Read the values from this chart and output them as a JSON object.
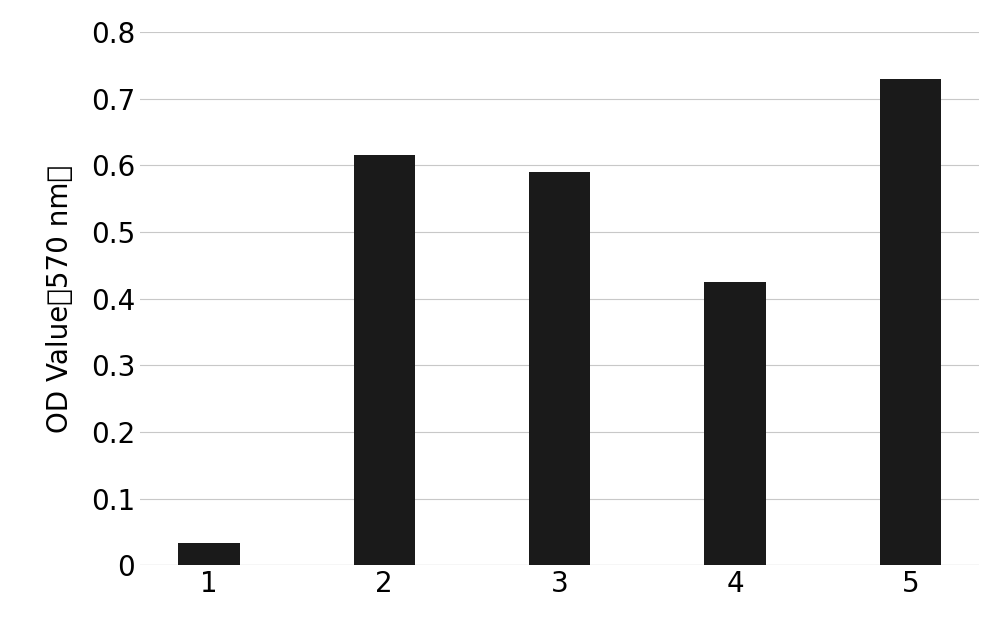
{
  "categories": [
    "1",
    "2",
    "3",
    "4",
    "5"
  ],
  "values": [
    0.033,
    0.615,
    0.59,
    0.425,
    0.73
  ],
  "bar_color": "#1a1a1a",
  "bar_width": 0.35,
  "ylabel": "OD Value（570 nm）",
  "ylim": [
    0,
    0.8
  ],
  "yticks": [
    0,
    0.1,
    0.2,
    0.3,
    0.4,
    0.5,
    0.6,
    0.7,
    0.8
  ],
  "ytick_labels": [
    "0",
    "0.1",
    "0.2",
    "0.3",
    "0.4",
    "0.5",
    "0.6",
    "0.7",
    "0.8"
  ],
  "ylabel_fontsize": 20,
  "tick_fontsize": 20,
  "grid_color": "#c8c8c8",
  "background_color": "#ffffff"
}
